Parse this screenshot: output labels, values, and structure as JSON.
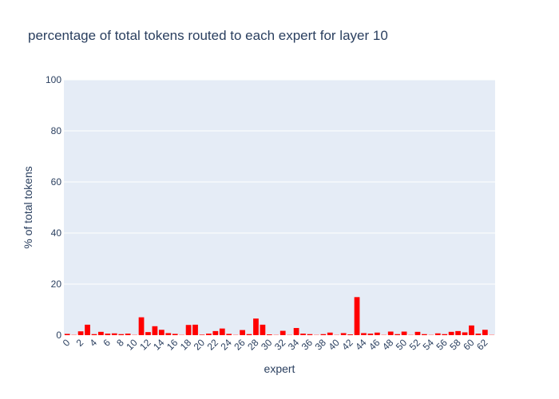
{
  "chart_data": {
    "type": "bar",
    "title": "percentage of total tokens routed to each expert for layer 10",
    "xlabel": "expert",
    "ylabel": "% of total tokens",
    "ylim": [
      0,
      100
    ],
    "yticks": [
      0,
      20,
      40,
      60,
      80,
      100
    ],
    "grid": true,
    "legend": "none",
    "bar_color": "#ff0000",
    "plot_background": "#e5ecf6",
    "x": [
      0,
      1,
      2,
      3,
      4,
      5,
      6,
      7,
      8,
      9,
      10,
      11,
      12,
      13,
      14,
      15,
      16,
      17,
      18,
      19,
      20,
      21,
      22,
      23,
      24,
      25,
      26,
      27,
      28,
      29,
      30,
      31,
      32,
      33,
      34,
      35,
      36,
      37,
      38,
      39,
      40,
      41,
      42,
      43,
      44,
      45,
      46,
      47,
      48,
      49,
      50,
      51,
      52,
      53,
      54,
      55,
      56,
      57,
      58,
      59,
      60,
      61,
      62,
      63
    ],
    "xtick_labels": [
      "0",
      "2",
      "4",
      "6",
      "8",
      "10",
      "12",
      "14",
      "16",
      "18",
      "20",
      "22",
      "24",
      "26",
      "28",
      "30",
      "32",
      "34",
      "36",
      "38",
      "40",
      "42",
      "44",
      "46",
      "48",
      "50",
      "52",
      "54",
      "56",
      "58",
      "60",
      "62"
    ],
    "values": [
      0.5,
      0.1,
      1.5,
      4.1,
      0.4,
      1.3,
      0.6,
      0.7,
      0.4,
      0.6,
      0.1,
      7.0,
      1.2,
      3.5,
      2.1,
      0.8,
      0.5,
      0.1,
      4.0,
      4.1,
      0.2,
      0.6,
      1.6,
      2.6,
      0.5,
      0.1,
      2.0,
      0.4,
      6.5,
      4.1,
      0.3,
      0.1,
      1.7,
      0.1,
      2.8,
      0.6,
      0.4,
      0.1,
      0.4,
      1.0,
      0.1,
      0.8,
      0.3,
      14.9,
      0.8,
      0.6,
      1.0,
      0.1,
      1.4,
      0.4,
      1.4,
      0.1,
      1.3,
      0.4,
      0.1,
      0.7,
      0.4,
      1.3,
      1.6,
      1.1,
      3.8,
      0.6,
      2.1,
      0.1
    ]
  }
}
